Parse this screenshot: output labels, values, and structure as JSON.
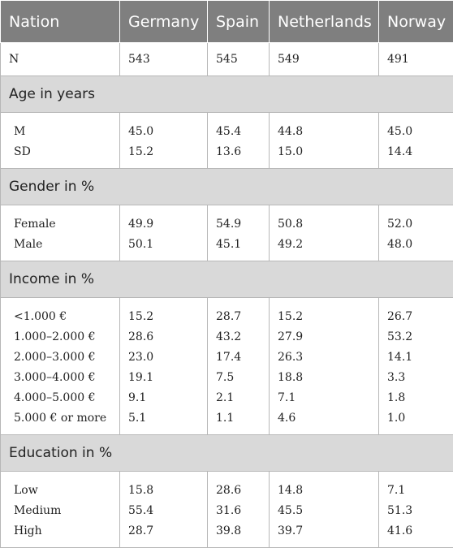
{
  "header": [
    "Nation",
    "Germany",
    "Spain",
    "Netherlands",
    "Norway"
  ],
  "n_row": [
    "N",
    "543",
    "545",
    "549",
    "491"
  ],
  "sections": [
    {
      "title": "Age in years",
      "rows": [
        [
          "M",
          "45.0",
          "45.4",
          "44.8",
          "45.0"
        ],
        [
          "SD",
          "15.2",
          "13.6",
          "15.0",
          "14.4"
        ]
      ]
    },
    {
      "title": "Gender in %",
      "rows": [
        [
          "Female",
          "49.9",
          "54.9",
          "50.8",
          "52.0"
        ],
        [
          "Male",
          "50.1",
          "45.1",
          "49.2",
          "48.0"
        ]
      ]
    },
    {
      "title": "Income in %",
      "rows": [
        [
          "<1.000 €",
          "15.2",
          "28.7",
          "15.2",
          "26.7"
        ],
        [
          "1.000–2.000 €",
          "28.6",
          "43.2",
          "27.9",
          "53.2"
        ],
        [
          "2.000–3.000 €",
          "23.0",
          "17.4",
          "26.3",
          "14.1"
        ],
        [
          "3.000–4.000 €",
          "19.1",
          "7.5",
          "18.8",
          "3.3"
        ],
        [
          "4.000–5.000 €",
          "9.1",
          "2.1",
          "7.1",
          "1.8"
        ],
        [
          "5.000 € or more",
          "5.1",
          "1.1",
          "4.6",
          "1.0"
        ]
      ]
    },
    {
      "title": "Education in %",
      "rows": [
        [
          "Low",
          "15.8",
          "28.6",
          "14.8",
          "7.1"
        ],
        [
          "Medium",
          "55.4",
          "31.6",
          "45.5",
          "51.3"
        ],
        [
          "High",
          "28.7",
          "39.8",
          "39.7",
          "41.6"
        ]
      ]
    }
  ]
}
